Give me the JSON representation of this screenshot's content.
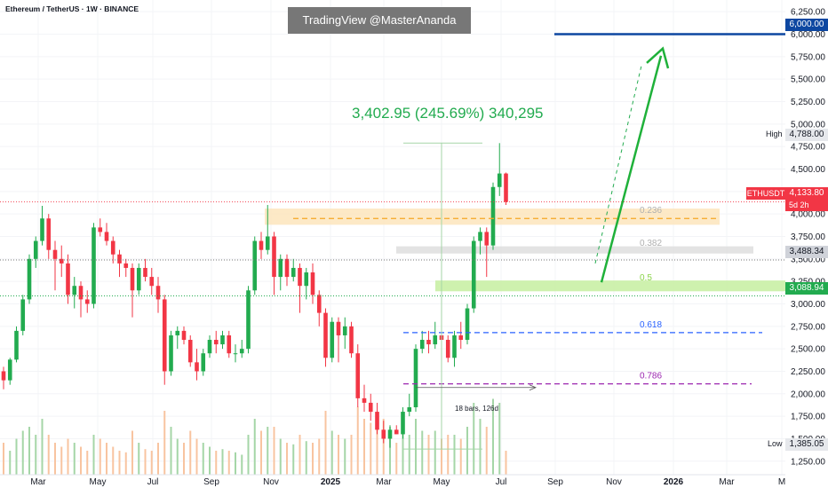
{
  "header": {
    "symbol": "Ethereum / TetherUS · 1W · BINANCE"
  },
  "watermark": "TradingView @MasterAnanda",
  "measure_label": "3,402.95 (245.69%) 340,295",
  "bars_label": "18 bars, 126d",
  "price_tags": {
    "target": "6,000.00",
    "high_label": "High",
    "high": "4,788.00",
    "ticker": "ETHUSDT",
    "last": "4,133.80",
    "countdown": "5d 2h",
    "level1": "3,488.34",
    "level2": "3,088.94",
    "low_label": "Low",
    "low": "1,385.05"
  },
  "fib_levels": [
    {
      "label": "0.236",
      "price": 3950,
      "color": "#f5a623"
    },
    {
      "label": "0.382",
      "price": 3585,
      "color": "#9e9e9e"
    },
    {
      "label": "0.5",
      "price": 3200,
      "color": "#8bd44a"
    },
    {
      "label": "0.618",
      "price": 2680,
      "color": "#2962ff"
    },
    {
      "label": "0.786",
      "price": 2110,
      "color": "#9c27b0"
    }
  ],
  "colors": {
    "up": "#22ab4f",
    "down": "#f23645",
    "arrow": "#1fb13a",
    "target_line": "#0d47a1"
  },
  "chart_data": {
    "type": "candlestick",
    "title": "",
    "y_ticks": [
      "6,250.00",
      "6,000.00",
      "5,750.00",
      "5,500.00",
      "5,250.00",
      "5,000.00",
      "4,750.00",
      "4,500.00",
      "4,250.00",
      "4,000.00",
      "3,750.00",
      "3,500.00",
      "3,250.00",
      "3,000.00",
      "2,750.00",
      "2,500.00",
      "2,250.00",
      "2,000.00",
      "1,750.00",
      "1,500.00",
      "1,250.00"
    ],
    "x_ticks": [
      {
        "label": "Mar",
        "bold": false
      },
      {
        "label": "May",
        "bold": false
      },
      {
        "label": "Jul",
        "bold": false
      },
      {
        "label": "Sep",
        "bold": false
      },
      {
        "label": "Nov",
        "bold": false
      },
      {
        "label": "2025",
        "bold": true
      },
      {
        "label": "Mar",
        "bold": false
      },
      {
        "label": "May",
        "bold": false
      },
      {
        "label": "Jul",
        "bold": false
      },
      {
        "label": "Sep",
        "bold": false
      },
      {
        "label": "Nov",
        "bold": false
      },
      {
        "label": "2026",
        "bold": true
      },
      {
        "label": "Mar",
        "bold": false
      },
      {
        "label": "M",
        "bold": false
      }
    ],
    "ylim": [
      1100,
      6380
    ],
    "candles": [
      [
        2250,
        2300,
        2050,
        2150
      ],
      [
        2150,
        2400,
        2100,
        2380
      ],
      [
        2380,
        2750,
        2350,
        2700
      ],
      [
        2700,
        3100,
        2650,
        3050
      ],
      [
        3050,
        3550,
        3000,
        3500
      ],
      [
        3500,
        3750,
        3400,
        3700
      ],
      [
        3700,
        4090,
        3650,
        3950
      ],
      [
        3950,
        4000,
        3500,
        3600
      ],
      [
        3600,
        3700,
        3150,
        3500
      ],
      [
        3500,
        3650,
        3300,
        3450
      ],
      [
        3450,
        3550,
        3000,
        3100
      ],
      [
        3100,
        3300,
        2950,
        3200
      ],
      [
        3200,
        3250,
        2850,
        3050
      ],
      [
        3050,
        3150,
        2900,
        3000
      ],
      [
        3000,
        3900,
        2950,
        3850
      ],
      [
        3850,
        3950,
        3750,
        3800
      ],
      [
        3800,
        3900,
        3650,
        3700
      ],
      [
        3700,
        3750,
        3450,
        3550
      ],
      [
        3550,
        3600,
        3300,
        3450
      ],
      [
        3450,
        3500,
        3300,
        3400
      ],
      [
        3400,
        3450,
        2850,
        3150
      ],
      [
        3150,
        3450,
        3100,
        3400
      ],
      [
        3400,
        3500,
        3250,
        3300
      ],
      [
        3300,
        3400,
        3100,
        3200
      ],
      [
        3200,
        3300,
        2900,
        3050
      ],
      [
        3050,
        3100,
        2100,
        2250
      ],
      [
        2250,
        2700,
        2200,
        2650
      ],
      [
        2650,
        2750,
        2500,
        2700
      ],
      [
        2700,
        2750,
        2550,
        2600
      ],
      [
        2600,
        2650,
        2300,
        2350
      ],
      [
        2350,
        2500,
        2150,
        2250
      ],
      [
        2250,
        2500,
        2200,
        2450
      ],
      [
        2450,
        2650,
        2400,
        2600
      ],
      [
        2600,
        2700,
        2450,
        2550
      ],
      [
        2550,
        2700,
        2500,
        2650
      ],
      [
        2650,
        2700,
        2400,
        2450
      ],
      [
        2450,
        2550,
        2350,
        2450
      ],
      [
        2450,
        2600,
        2400,
        2500
      ],
      [
        2500,
        3200,
        2450,
        3150
      ],
      [
        3150,
        3750,
        3100,
        3700
      ],
      [
        3700,
        3800,
        3500,
        3600
      ],
      [
        3600,
        4100,
        3550,
        3750
      ],
      [
        3750,
        3800,
        3100,
        3300
      ],
      [
        3300,
        3550,
        3150,
        3500
      ],
      [
        3500,
        3550,
        3200,
        3300
      ],
      [
        3300,
        3500,
        3250,
        3400
      ],
      [
        3400,
        3450,
        2900,
        3200
      ],
      [
        3200,
        3400,
        3050,
        3350
      ],
      [
        3350,
        3450,
        3000,
        3100
      ],
      [
        3100,
        3150,
        2750,
        2900
      ],
      [
        2900,
        2950,
        2300,
        2400
      ],
      [
        2400,
        2850,
        2350,
        2800
      ],
      [
        2800,
        2850,
        2350,
        2650
      ],
      [
        2650,
        2850,
        2500,
        2750
      ],
      [
        2750,
        2800,
        2400,
        2450
      ],
      [
        2450,
        2550,
        1850,
        1950
      ],
      [
        1950,
        2100,
        1800,
        1900
      ],
      [
        1900,
        2000,
        1700,
        1800
      ],
      [
        1800,
        1900,
        1550,
        1600
      ],
      [
        1600,
        1700,
        1450,
        1500
      ],
      [
        1500,
        1650,
        1400,
        1600
      ],
      [
        1600,
        1650,
        1550,
        1550
      ],
      [
        1550,
        1850,
        1500,
        1800
      ],
      [
        1800,
        2000,
        1750,
        1850
      ],
      [
        1850,
        2550,
        1800,
        2500
      ],
      [
        2500,
        2700,
        2450,
        2600
      ],
      [
        2600,
        2700,
        2450,
        2550
      ],
      [
        2550,
        2800,
        2500,
        2650
      ],
      [
        2650,
        2750,
        2550,
        2600
      ],
      [
        2600,
        2650,
        2350,
        2400
      ],
      [
        2400,
        2700,
        2300,
        2650
      ],
      [
        2650,
        2800,
        2500,
        2600
      ],
      [
        2600,
        3000,
        2550,
        2950
      ],
      [
        2950,
        3750,
        2900,
        3700
      ],
      [
        3700,
        3850,
        3550,
        3800
      ],
      [
        3800,
        3850,
        3300,
        3650
      ],
      [
        3650,
        4350,
        3600,
        4300
      ],
      [
        4300,
        4788,
        4200,
        4450
      ],
      [
        4450,
        4460,
        4100,
        4134
      ]
    ],
    "price_lines": {
      "target": 6000,
      "level1": 3488.34,
      "level2": 3088.94
    }
  }
}
